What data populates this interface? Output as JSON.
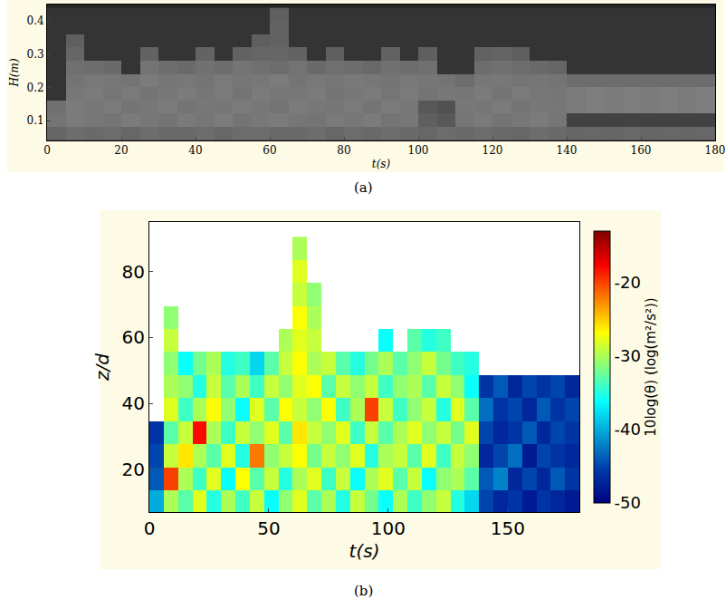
{
  "chart_data": [
    {
      "type": "heatmap",
      "label": "(a)",
      "x_label": "t(s)",
      "y_label": "H(m)",
      "color": "gray",
      "x": [
        2.5,
        7.5,
        12.5,
        17.5,
        22.5,
        27.5,
        32.5,
        37.5,
        42.5,
        47.5,
        52.5,
        57.5,
        62.5,
        67.5,
        72.5,
        77.5,
        82.5,
        87.5,
        92.5,
        97.5,
        102.5,
        107.5,
        112.5,
        117.5,
        122.5,
        127.5,
        132.5,
        137.5,
        142.5,
        147.5,
        152.5,
        157.5,
        162.5,
        167.5,
        172.5,
        177.5
      ],
      "y": [
        0.06,
        0.1,
        0.14,
        0.18,
        0.22,
        0.26,
        0.3,
        0.34,
        0.38,
        0.42
      ],
      "values": [
        [
          0.45,
          0.5,
          0.48,
          0.5,
          0.46,
          0.5,
          0.48,
          0.47,
          0.5,
          0.46,
          0.49,
          0.5,
          0.47,
          0.48,
          0.5,
          0.46,
          0.49,
          0.47,
          0.5,
          0.48,
          0.46,
          0.49,
          0.47,
          0.5,
          0.48,
          0.46,
          0.5,
          0.47,
          0.45,
          0.46,
          0.45,
          0.47,
          0.45,
          0.46,
          0.45,
          0.46
        ],
        [
          0.55,
          0.6,
          0.58,
          0.55,
          0.6,
          0.57,
          0.55,
          0.59,
          0.56,
          0.6,
          0.55,
          0.58,
          0.6,
          0.56,
          0.55,
          0.59,
          0.57,
          0.6,
          0.55,
          0.58,
          0.4,
          0.35,
          0.56,
          0.59,
          0.55,
          0.57,
          0.6,
          0.56,
          0.2,
          0.2,
          0.2,
          0.2,
          0.2,
          0.2,
          0.2,
          0.2
        ],
        [
          0.52,
          0.6,
          0.57,
          0.6,
          0.55,
          0.58,
          0.6,
          0.55,
          0.58,
          0.56,
          0.6,
          0.57,
          0.55,
          0.6,
          0.58,
          0.56,
          0.59,
          0.55,
          0.6,
          0.57,
          0.35,
          0.3,
          0.58,
          0.56,
          0.6,
          0.55,
          0.58,
          0.57,
          0.6,
          0.62,
          0.6,
          0.62,
          0.6,
          0.62,
          0.6,
          0.62
        ],
        [
          0.1,
          0.58,
          0.6,
          0.56,
          0.59,
          0.55,
          0.58,
          0.6,
          0.56,
          0.59,
          0.55,
          0.6,
          0.57,
          0.58,
          0.6,
          0.55,
          0.58,
          0.6,
          0.56,
          0.59,
          0.55,
          0.58,
          0.56,
          0.6,
          0.55,
          0.59,
          0.57,
          0.56,
          0.6,
          0.62,
          0.6,
          0.62,
          0.6,
          0.62,
          0.6,
          0.62
        ],
        [
          0.1,
          0.55,
          0.58,
          0.57,
          0.55,
          0.6,
          0.56,
          0.58,
          0.55,
          0.59,
          0.56,
          0.57,
          0.6,
          0.55,
          0.58,
          0.56,
          0.59,
          0.57,
          0.55,
          0.58,
          0.56,
          0.55,
          0.5,
          0.57,
          0.58,
          0.55,
          0.56,
          0.55,
          0.5,
          0.5,
          0.5,
          0.5,
          0.5,
          0.5,
          0.5,
          0.5
        ],
        [
          0.1,
          0.52,
          0.5,
          0.48,
          0.1,
          0.55,
          0.5,
          0.48,
          0.53,
          0.5,
          0.55,
          0.52,
          0.5,
          0.54,
          0.48,
          0.52,
          0.5,
          0.47,
          0.53,
          0.5,
          0.52,
          0.1,
          0.1,
          0.5,
          0.53,
          0.5,
          0.48,
          0.45,
          0.1,
          0.1,
          0.1,
          0.1,
          0.1,
          0.1,
          0.1,
          0.1
        ],
        [
          0.1,
          0.45,
          0.1,
          0.1,
          0.1,
          0.42,
          0.1,
          0.1,
          0.43,
          0.1,
          0.42,
          0.45,
          0.45,
          0.42,
          0.1,
          0.4,
          0.1,
          0.1,
          0.42,
          0.1,
          0.4,
          0.1,
          0.1,
          0.42,
          0.44,
          0.4,
          0.1,
          0.1,
          0.1,
          0.1,
          0.1,
          0.1,
          0.1,
          0.1,
          0.1,
          0.1
        ],
        [
          0.1,
          0.4,
          0.1,
          0.1,
          0.1,
          0.1,
          0.1,
          0.1,
          0.1,
          0.1,
          0.1,
          0.4,
          0.42,
          0.1,
          0.1,
          0.1,
          0.1,
          0.1,
          0.1,
          0.1,
          0.1,
          0.1,
          0.1,
          0.1,
          0.1,
          0.1,
          0.1,
          0.1,
          0.1,
          0.1,
          0.1,
          0.1,
          0.1,
          0.1,
          0.1,
          0.1
        ],
        [
          0.1,
          0.1,
          0.1,
          0.1,
          0.1,
          0.1,
          0.1,
          0.1,
          0.1,
          0.1,
          0.1,
          0.1,
          0.42,
          0.1,
          0.1,
          0.1,
          0.1,
          0.1,
          0.1,
          0.1,
          0.1,
          0.1,
          0.1,
          0.1,
          0.1,
          0.1,
          0.1,
          0.1,
          0.1,
          0.1,
          0.1,
          0.1,
          0.1,
          0.1,
          0.1,
          0.1
        ],
        [
          0.1,
          0.1,
          0.1,
          0.1,
          0.1,
          0.1,
          0.1,
          0.1,
          0.1,
          0.1,
          0.1,
          0.1,
          0.4,
          0.1,
          0.1,
          0.1,
          0.1,
          0.1,
          0.1,
          0.1,
          0.1,
          0.1,
          0.1,
          0.1,
          0.1,
          0.1,
          0.1,
          0.1,
          0.1,
          0.1,
          0.1,
          0.1,
          0.1,
          0.1,
          0.1,
          0.1
        ]
      ],
      "zlim": [
        0,
        1
      ],
      "xlim": [
        0,
        180
      ],
      "xticks": [
        0,
        20,
        40,
        60,
        80,
        100,
        120,
        140,
        160,
        180
      ],
      "ylim": [
        0.04,
        0.45
      ],
      "yticks": [
        0.1,
        0.2,
        0.3,
        0.4
      ]
    },
    {
      "type": "heatmap",
      "label": "(b)",
      "x_label": "t(s)",
      "y_label": "z/d",
      "color": "jet",
      "x": [
        3,
        9,
        15,
        21,
        27,
        33,
        39,
        45,
        51,
        57,
        63,
        69,
        75,
        81,
        87,
        93,
        99,
        105,
        111,
        117,
        123,
        129,
        135,
        141,
        147,
        153,
        159,
        165,
        171,
        177
      ],
      "y": [
        10,
        17,
        24,
        31,
        38,
        45,
        52,
        59,
        66,
        73,
        80,
        87
      ],
      "values": [
        [
          -40,
          -30,
          -33,
          -28,
          -35,
          -30,
          -34,
          -29,
          -36,
          -31,
          -28,
          -33,
          -30,
          -35,
          -29,
          -32,
          -36,
          -30,
          -34,
          -31,
          -29,
          -35,
          -38,
          -45,
          -47,
          -46,
          -48,
          -46,
          -47,
          -48
        ],
        [
          -44,
          -20,
          -30,
          -34,
          -28,
          -36,
          -27,
          -33,
          -29,
          -35,
          -30,
          -28,
          -34,
          -29,
          -36,
          -30,
          -28,
          -33,
          -29,
          -36,
          -31,
          -30,
          -33,
          -44,
          -42,
          -47,
          -45,
          -47,
          -44,
          -46
        ],
        [
          -45,
          -29,
          -26,
          -30,
          -33,
          -28,
          -35,
          -22,
          -31,
          -29,
          -27,
          -32,
          -29,
          -31,
          -28,
          -35,
          -30,
          -29,
          -33,
          -28,
          -34,
          -29,
          -31,
          -47,
          -45,
          -43,
          -48,
          -45,
          -46,
          -47
        ],
        [
          -46,
          -33,
          -29,
          -18,
          -30,
          -34,
          -29,
          -31,
          -28,
          -33,
          -26,
          -29,
          -31,
          -28,
          -34,
          -29,
          -33,
          -30,
          -28,
          -31,
          -29,
          -32,
          -28,
          -45,
          -47,
          -46,
          -44,
          -47,
          -45,
          -46
        ],
        [
          null,
          -28,
          -34,
          -30,
          -27,
          -31,
          -36,
          -28,
          -33,
          -27,
          -29,
          -31,
          -27,
          -34,
          -30,
          -20,
          -29,
          -34,
          -31,
          -29,
          -35,
          -28,
          -33,
          -43,
          -46,
          -45,
          -47,
          -44,
          -46,
          -45
        ],
        [
          null,
          -30,
          -31,
          -35,
          -29,
          -33,
          -30,
          -34,
          -29,
          -31,
          -28,
          -27,
          -33,
          -29,
          -31,
          -29,
          -34,
          -31,
          -30,
          -33,
          -29,
          -31,
          -36,
          -46,
          -44,
          -47,
          -45,
          -46,
          -45,
          -47
        ],
        [
          null,
          -31,
          -36,
          -32,
          -30,
          -35,
          -34,
          -38,
          -33,
          -29,
          -27,
          -30,
          -29,
          -33,
          -35,
          -32,
          -30,
          -33,
          -31,
          -29,
          -32,
          -34,
          -35,
          null,
          null,
          null,
          null,
          null,
          null,
          null
        ],
        [
          null,
          -29,
          null,
          null,
          null,
          null,
          null,
          null,
          null,
          -30,
          -28,
          -29,
          null,
          null,
          null,
          null,
          -36,
          null,
          -33,
          -35,
          -34,
          null,
          null,
          null,
          null,
          null,
          null,
          null,
          null,
          null
        ],
        [
          null,
          -31,
          null,
          null,
          null,
          null,
          null,
          null,
          null,
          null,
          -27,
          -30,
          null,
          null,
          null,
          null,
          null,
          null,
          null,
          null,
          null,
          null,
          null,
          null,
          null,
          null,
          null,
          null,
          null,
          null
        ],
        [
          null,
          null,
          null,
          null,
          null,
          null,
          null,
          null,
          null,
          null,
          -29,
          -31,
          null,
          null,
          null,
          null,
          null,
          null,
          null,
          null,
          null,
          null,
          null,
          null,
          null,
          null,
          null,
          null,
          null,
          null
        ],
        [
          null,
          null,
          null,
          null,
          null,
          null,
          null,
          null,
          null,
          null,
          -28,
          null,
          null,
          null,
          null,
          null,
          null,
          null,
          null,
          null,
          null,
          null,
          null,
          null,
          null,
          null,
          null,
          null,
          null,
          null
        ],
        [
          null,
          null,
          null,
          null,
          null,
          null,
          null,
          null,
          null,
          null,
          -30,
          null,
          null,
          null,
          null,
          null,
          null,
          null,
          null,
          null,
          null,
          null,
          null,
          null,
          null,
          null,
          null,
          null,
          null,
          null
        ]
      ],
      "colorbar": {
        "title": "10log(θ) (log(m²/s²))",
        "range": [
          -50,
          -13
        ],
        "ticks": [
          -20,
          -30,
          -40,
          -50
        ]
      },
      "xlim": [
        0,
        180
      ],
      "xticks": [
        0,
        50,
        100,
        150
      ],
      "ylim": [
        7,
        95
      ],
      "yticks": [
        20,
        40,
        60,
        80
      ]
    }
  ]
}
